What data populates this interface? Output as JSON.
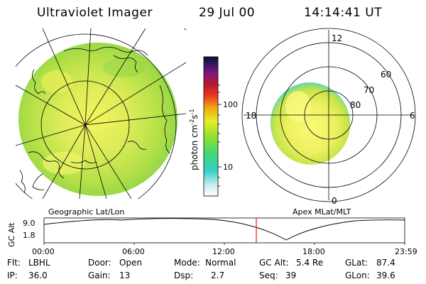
{
  "header": {
    "title": "Ultraviolet Imager",
    "date": "29 Jul 00",
    "time": "14:14:41 UT"
  },
  "colorbar": {
    "unit_label": "photon cm",
    "unit_sup1": "-2",
    "unit_mid": "s",
    "unit_sup2": "-1",
    "tick_100": "100",
    "tick_10": "10"
  },
  "polar": {
    "lat_labels": [
      "80",
      "70",
      "60"
    ],
    "mlt_labels": {
      "top": "12",
      "bottom": "0",
      "left": "18",
      "right": "6"
    }
  },
  "map_labels": {
    "left": "Geographic Lat/Lon",
    "right": "Apex MLat/MLT"
  },
  "altitude_plot": {
    "axis_label": "GC Alt",
    "y_top": "9.0",
    "y_bottom": "1.8",
    "x_ticks": [
      "00:00",
      "06:00",
      "12:00",
      "18:00",
      "23:59"
    ]
  },
  "status": {
    "flt_label": "Flt:",
    "flt_value": "LBHL",
    "ip_label": "IP:",
    "ip_value": "36.0",
    "door_label": "Door:",
    "door_value": "Open",
    "gain_label": "Gain:",
    "gain_value": "13",
    "mode_label": "Mode:",
    "mode_value": "Normal",
    "dsp_label": "Dsp:",
    "dsp_value": "2.7",
    "gcalt_label": "GC Alt:",
    "gcalt_value": "5.4 Re",
    "seq_label": "Seq:",
    "seq_value": "39",
    "glat_label": "GLat:",
    "glat_value": "87.4",
    "glon_label": "GLon:",
    "glon_value": "39.6"
  },
  "colors": {
    "aurora_yellow": "#e8f050",
    "aurora_green": "#a8e040",
    "aurora_cyan": "#40d8c8",
    "marker_red": "#e01818"
  }
}
